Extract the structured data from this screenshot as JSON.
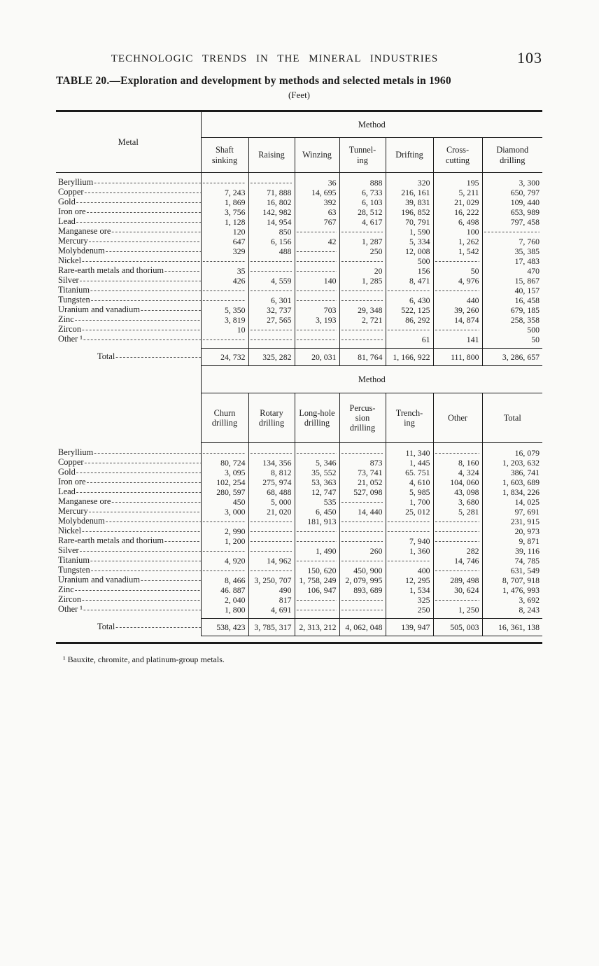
{
  "page": {
    "running_head": "TECHNOLOGIC TRENDS IN THE MINERAL INDUSTRIES",
    "page_number": "103",
    "table_title": "TABLE 20.—Exploration and development by methods and selected metals in 1960",
    "unit_note": "(Feet)",
    "footnote": "¹ Bauxite, chromite, and platinum-group metals."
  },
  "table1": {
    "stub_header": "Metal",
    "group_header": "Method",
    "columns": [
      "Shaft\nsinking",
      "Raising",
      "Winzing",
      "Tunnel-\ning",
      "Drifting",
      "Cross-\ncutting",
      "Diamond\ndrilling"
    ],
    "rows": [
      {
        "metal": "Beryllium",
        "values": [
          null,
          null,
          "36",
          "888",
          "320",
          "195",
          "3, 300"
        ]
      },
      {
        "metal": "Copper",
        "values": [
          "7, 243",
          "71, 888",
          "14, 695",
          "6, 733",
          "216, 161",
          "5, 211",
          "650, 797"
        ]
      },
      {
        "metal": "Gold",
        "values": [
          "1, 869",
          "16, 802",
          "392",
          "6, 103",
          "39, 831",
          "21, 029",
          "109, 440"
        ]
      },
      {
        "metal": "Iron ore",
        "values": [
          "3, 756",
          "142, 982",
          "63",
          "28, 512",
          "196, 852",
          "16, 222",
          "653, 989"
        ]
      },
      {
        "metal": "Lead",
        "values": [
          "1, 128",
          "14, 954",
          "767",
          "4, 617",
          "70, 791",
          "6, 498",
          "797, 458"
        ]
      },
      {
        "metal": "Manganese ore",
        "values": [
          "120",
          "850",
          null,
          null,
          "1, 590",
          "100",
          null
        ]
      },
      {
        "metal": "Mercury",
        "values": [
          "647",
          "6, 156",
          "42",
          "1, 287",
          "5, 334",
          "1, 262",
          "7, 760"
        ]
      },
      {
        "metal": "Molybdenum",
        "values": [
          "329",
          "488",
          null,
          "250",
          "12, 008",
          "1, 542",
          "35, 385"
        ]
      },
      {
        "metal": "Nickel",
        "values": [
          null,
          null,
          null,
          null,
          "500",
          null,
          "17, 483"
        ]
      },
      {
        "metal": "Rare-earth metals and thorium",
        "values": [
          "35",
          null,
          null,
          "20",
          "156",
          "50",
          "470"
        ]
      },
      {
        "metal": "Silver",
        "values": [
          "426",
          "4, 559",
          "140",
          "1, 285",
          "8, 471",
          "4, 976",
          "15, 867"
        ]
      },
      {
        "metal": "Titanium",
        "values": [
          null,
          null,
          null,
          null,
          null,
          null,
          "40, 157"
        ]
      },
      {
        "metal": "Tungsten",
        "values": [
          null,
          "6, 301",
          null,
          null,
          "6, 430",
          "440",
          "16, 458"
        ]
      },
      {
        "metal": "Uranium and vanadium",
        "values": [
          "5, 350",
          "32, 737",
          "703",
          "29, 348",
          "522, 125",
          "39, 260",
          "679, 185"
        ]
      },
      {
        "metal": "Zinc",
        "values": [
          "3, 819",
          "27, 565",
          "3, 193",
          "2, 721",
          "86, 292",
          "14, 874",
          "258, 358"
        ]
      },
      {
        "metal": "Zircon",
        "values": [
          "10",
          null,
          null,
          null,
          null,
          null,
          "500"
        ]
      },
      {
        "metal": "Other ¹",
        "values": [
          null,
          null,
          null,
          null,
          "61",
          "141",
          "50"
        ]
      }
    ],
    "total": {
      "label": "Total",
      "values": [
        "24, 732",
        "325, 282",
        "20, 031",
        "81, 764",
        "1, 166, 922",
        "111, 800",
        "3, 286, 657"
      ]
    }
  },
  "table2": {
    "group_header": "Method",
    "columns": [
      "Churn\ndrilling",
      "Rotary\ndrilling",
      "Long-hole\ndrilling",
      "Percus-\nsion\ndrilling",
      "Trench-\ning",
      "Other",
      "Total"
    ],
    "rows": [
      {
        "metal": "Beryllium",
        "values": [
          null,
          null,
          null,
          null,
          "11, 340",
          null,
          "16, 079"
        ]
      },
      {
        "metal": "Copper",
        "values": [
          "80, 724",
          "134, 356",
          "5, 346",
          "873",
          "1, 445",
          "8, 160",
          "1, 203, 632"
        ]
      },
      {
        "metal": "Gold",
        "values": [
          "3, 095",
          "8, 812",
          "35, 552",
          "73, 741",
          "65. 751",
          "4, 324",
          "386, 741"
        ]
      },
      {
        "metal": "Iron ore",
        "values": [
          "102, 254",
          "275, 974",
          "53, 363",
          "21, 052",
          "4, 610",
          "104, 060",
          "1, 603, 689"
        ]
      },
      {
        "metal": "Lead",
        "values": [
          "280, 597",
          "68, 488",
          "12, 747",
          "527, 098",
          "5, 985",
          "43, 098",
          "1, 834, 226"
        ]
      },
      {
        "metal": "Manganese ore",
        "values": [
          "450",
          "5, 000",
          "535",
          null,
          "1, 700",
          "3, 680",
          "14, 025"
        ]
      },
      {
        "metal": "Mercury",
        "values": [
          "3, 000",
          "21, 020",
          "6, 450",
          "14, 440",
          "25, 012",
          "5, 281",
          "97, 691"
        ]
      },
      {
        "metal": "Molybdenum",
        "values": [
          null,
          null,
          "181, 913",
          null,
          null,
          null,
          "231, 915"
        ]
      },
      {
        "metal": "Nickel",
        "values": [
          "2, 990",
          null,
          null,
          null,
          null,
          null,
          "20, 973"
        ]
      },
      {
        "metal": "Rare-earth metals and thorium",
        "values": [
          "1, 200",
          null,
          null,
          null,
          "7, 940",
          null,
          "9, 871"
        ]
      },
      {
        "metal": "Silver",
        "values": [
          null,
          null,
          "1, 490",
          "260",
          "1, 360",
          "282",
          "39, 116"
        ]
      },
      {
        "metal": "Titanium",
        "values": [
          "4, 920",
          "14, 962",
          null,
          null,
          null,
          "14, 746",
          "74, 785"
        ]
      },
      {
        "metal": "Tungsten",
        "values": [
          null,
          null,
          "150, 620",
          "450, 900",
          "400",
          null,
          "631, 549"
        ]
      },
      {
        "metal": "Uranium and vanadium",
        "values": [
          "8, 466",
          "3, 250, 707",
          "1, 758, 249",
          "2, 079, 995",
          "12, 295",
          "289, 498",
          "8, 707, 918"
        ]
      },
      {
        "metal": "Zinc",
        "values": [
          "46. 887",
          "490",
          "106, 947",
          "893, 689",
          "1, 534",
          "30, 624",
          "1, 476, 993"
        ]
      },
      {
        "metal": "Zircon",
        "values": [
          "2, 040",
          "817",
          null,
          null,
          "325",
          null,
          "3, 692"
        ]
      },
      {
        "metal": "Other ¹",
        "values": [
          "1, 800",
          "4, 691",
          null,
          null,
          "250",
          "1, 250",
          "8, 243"
        ]
      }
    ],
    "total": {
      "label": "Total",
      "values": [
        "538, 423",
        "3, 785, 317",
        "2, 313, 212",
        "4, 062, 048",
        "139, 947",
        "505, 003",
        "16, 361, 138"
      ]
    }
  }
}
